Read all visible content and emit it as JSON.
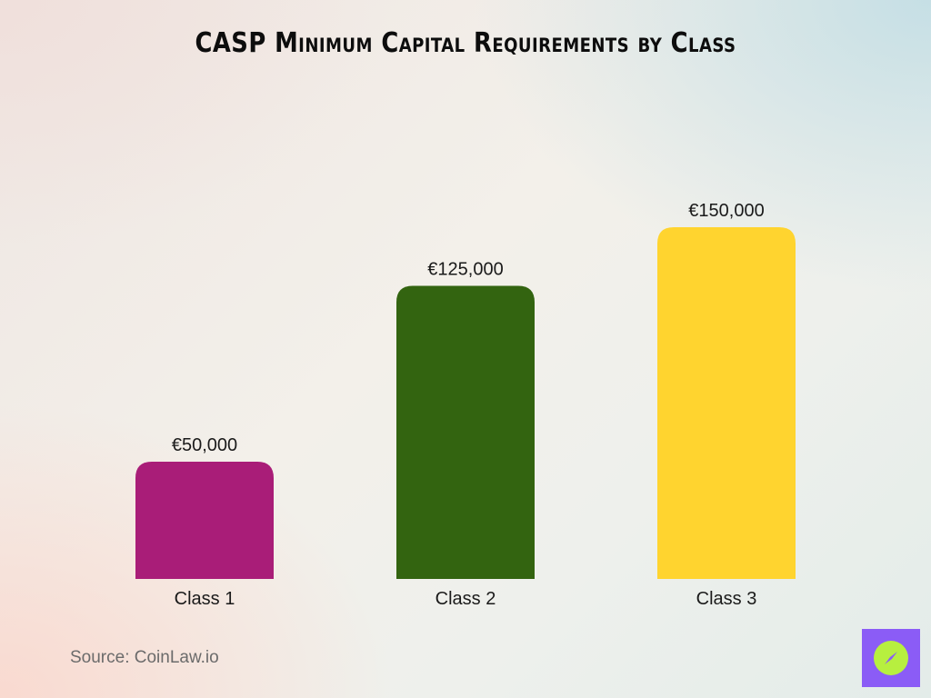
{
  "title": "CASP Minimum Capital Requirements by Class",
  "source": "Source: CoinLaw.io",
  "logo": {
    "icon": "compass-icon",
    "background_color": "#8b5cf6",
    "circle_color": "#b7ef3f"
  },
  "chart_data": {
    "type": "bar",
    "title": "CASP Minimum Capital Requirements by Class",
    "categories": [
      "Class 1",
      "Class 2",
      "Class 3"
    ],
    "values": [
      50000,
      125000,
      150000
    ],
    "value_labels": [
      "€50,000",
      "€125,000",
      "€150,000"
    ],
    "colors": [
      "#a91d78",
      "#336410",
      "#ffd42f"
    ],
    "xlabel": "",
    "ylabel": "",
    "ylim": [
      0,
      150000
    ],
    "grid": false,
    "legend": "none"
  }
}
